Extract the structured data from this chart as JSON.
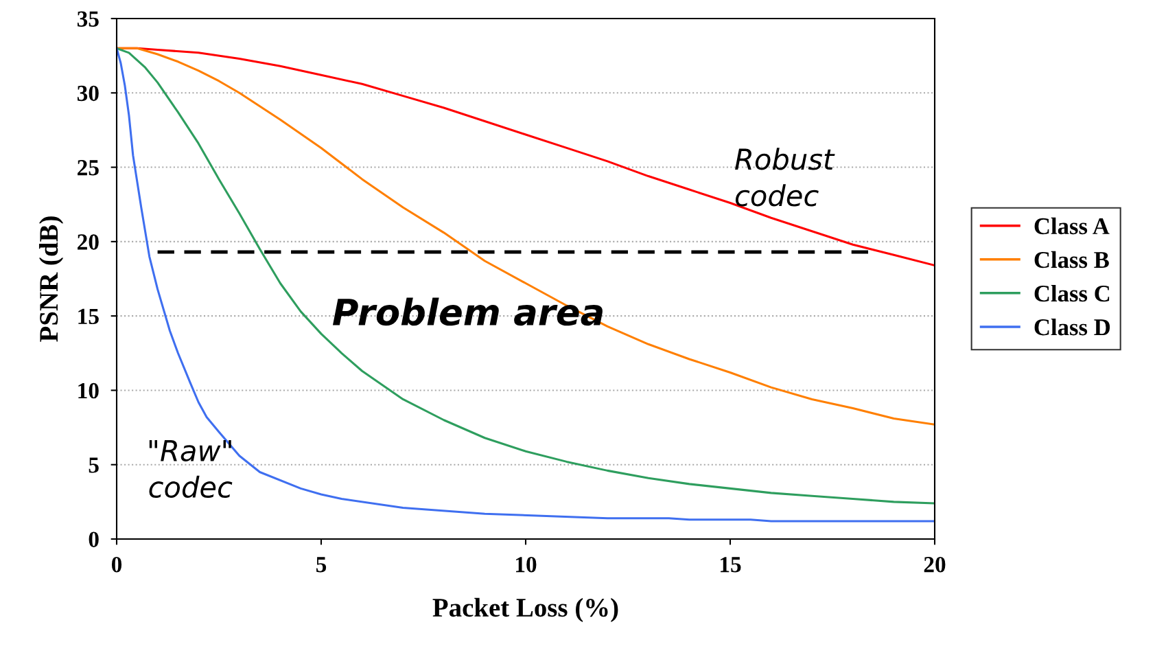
{
  "chart_data": {
    "type": "line",
    "xlabel": "Packet Loss (%)",
    "ylabel": "PSNR (dB)",
    "xlim": [
      0,
      20
    ],
    "xticks": [
      0,
      5,
      10,
      15,
      20
    ],
    "ylim": [
      0,
      35
    ],
    "yticks": [
      0,
      5,
      10,
      15,
      20,
      25,
      30,
      35
    ],
    "grid": "y",
    "legend": "right",
    "marker": "none",
    "line_style": "solid",
    "series": [
      {
        "name": "Class A",
        "color": "#ff0000",
        "x": [
          0,
          0.5,
          1,
          2,
          3,
          4,
          5,
          6,
          7,
          8,
          9,
          10,
          11,
          12,
          13,
          14,
          15,
          16,
          17,
          18,
          19,
          20
        ],
        "values": [
          33,
          33,
          32.9,
          32.7,
          32.3,
          31.8,
          31.2,
          30.6,
          29.8,
          29,
          28.1,
          27.2,
          26.3,
          25.4,
          24.4,
          23.5,
          22.6,
          21.6,
          20.7,
          19.8,
          19.1,
          18.4
        ]
      },
      {
        "name": "Class B",
        "color": "#ff7f00",
        "x": [
          0,
          0.5,
          1,
          1.5,
          2,
          2.5,
          3,
          4,
          5,
          6,
          7,
          8,
          9,
          10,
          11,
          12,
          13,
          14,
          15,
          16,
          17,
          18,
          19,
          20
        ],
        "values": [
          33,
          33,
          32.6,
          32.1,
          31.5,
          30.8,
          30,
          28.2,
          26.3,
          24.2,
          22.3,
          20.6,
          18.7,
          17.2,
          15.7,
          14.3,
          13.1,
          12.1,
          11.2,
          10.2,
          9.4,
          8.8,
          8.1,
          7.7
        ]
      },
      {
        "name": "Class C",
        "color": "#2e9e5e",
        "x": [
          0,
          0.3,
          0.7,
          1,
          1.5,
          2,
          2.5,
          3,
          3.5,
          4,
          4.5,
          5,
          5.5,
          6,
          7,
          8,
          9,
          10,
          11,
          12,
          13,
          14,
          15,
          16,
          17,
          18,
          19,
          20
        ],
        "values": [
          33,
          32.7,
          31.7,
          30.7,
          28.7,
          26.6,
          24.2,
          21.9,
          19.5,
          17.2,
          15.3,
          13.8,
          12.5,
          11.3,
          9.4,
          8,
          6.8,
          5.9,
          5.2,
          4.6,
          4.1,
          3.7,
          3.4,
          3.1,
          2.9,
          2.7,
          2.5,
          2.4
        ]
      },
      {
        "name": "Class D",
        "color": "#3f6ff0",
        "x": [
          0,
          0.1,
          0.2,
          0.3,
          0.4,
          0.6,
          0.8,
          1,
          1.3,
          1.5,
          1.8,
          2,
          2.2,
          2.5,
          3,
          3.5,
          4.5,
          5,
          5.5,
          7,
          9,
          12,
          13.5,
          14,
          15.5,
          16,
          20
        ],
        "values": [
          33,
          32,
          30.5,
          28.5,
          25.8,
          22.3,
          19,
          16.8,
          14,
          12.5,
          10.5,
          9.2,
          8.2,
          7.2,
          5.6,
          4.5,
          3.4,
          3,
          2.7,
          2.1,
          1.7,
          1.4,
          1.4,
          1.3,
          1.3,
          1.2,
          1.2
        ]
      }
    ],
    "ref_lines": [
      {
        "axis": "y",
        "value": 19.3,
        "color": "#000000",
        "line_style": "dashed"
      }
    ],
    "annotations": [
      "Robust\ncodec",
      "Problem area",
      "\"Raw\"\ncodec"
    ]
  }
}
